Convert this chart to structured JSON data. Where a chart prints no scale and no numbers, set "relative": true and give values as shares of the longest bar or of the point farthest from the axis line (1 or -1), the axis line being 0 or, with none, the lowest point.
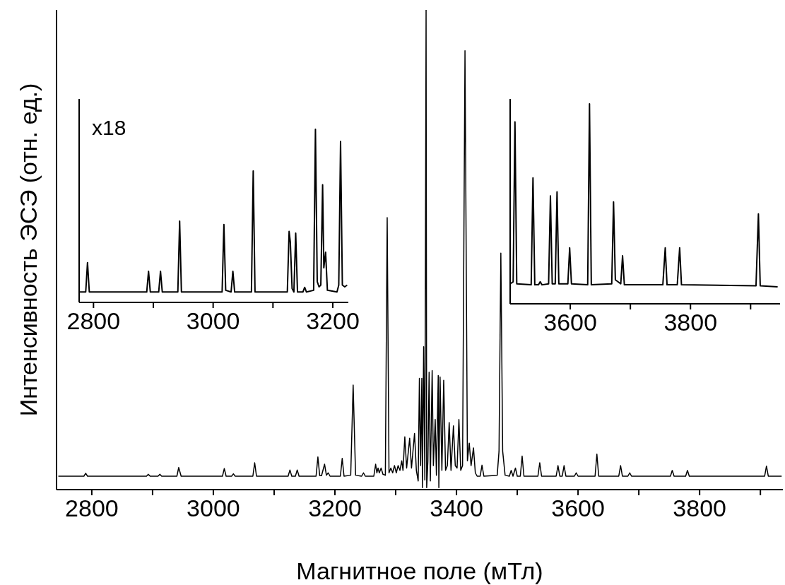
{
  "chart_data": [
    {
      "type": "line",
      "xlabel": "Магнитное поле (мТл)",
      "ylabel": "Интенсивность ЭСЭ (отн. ед.)",
      "relative": true,
      "color": "#000000",
      "xlim": [
        2742,
        3937
      ],
      "xticks": [
        2800,
        {
          "value": 2900,
          "label": null
        },
        3000,
        {
          "value": 3100,
          "label": null
        },
        3200,
        {
          "value": 3300,
          "label": null
        },
        3400,
        {
          "value": 3500,
          "label": null
        },
        3600,
        {
          "value": 3700,
          "label": null
        },
        3800,
        {
          "value": 3900,
          "label": null
        }
      ],
      "x": [
        2745,
        2787,
        2790,
        2793,
        2890,
        2893,
        2896,
        2909,
        2912,
        2915,
        2940,
        2943,
        2947,
        3015,
        3018,
        3021,
        3030,
        3033,
        3036,
        3065,
        3068,
        3071,
        3123,
        3126,
        3129,
        3135,
        3138,
        3141,
        3169,
        3172,
        3175,
        3178,
        3183,
        3186,
        3189,
        3192,
        3209,
        3212,
        3215,
        3226,
        3230,
        3234,
        3244,
        3247,
        3250,
        3264,
        3267,
        3269,
        3271,
        3273,
        3276,
        3279,
        3283,
        3286,
        3289,
        3292,
        3295,
        3298,
        3301,
        3304,
        3307,
        3310,
        3312,
        3315,
        3318,
        3323,
        3326,
        3331,
        3334,
        3337,
        3339,
        3341,
        3343,
        3344,
        3346,
        3348,
        3350,
        3351,
        3353,
        3355,
        3357,
        3360,
        3362,
        3365,
        3367,
        3370,
        3371,
        3373,
        3376,
        3379,
        3382,
        3385,
        3388,
        3391,
        3395,
        3398,
        3401,
        3404,
        3407,
        3410,
        3414,
        3418,
        3421,
        3424,
        3428,
        3431,
        3434,
        3439,
        3442,
        3445,
        3467,
        3470,
        3473,
        3476,
        3480,
        3487,
        3490,
        3493,
        3497,
        3500,
        3505,
        3508,
        3511,
        3534,
        3537,
        3540,
        3564,
        3567,
        3570,
        3574,
        3577,
        3580,
        3594,
        3597,
        3600,
        3628,
        3631,
        3634,
        3667,
        3670,
        3673,
        3682,
        3685,
        3688,
        3752,
        3755,
        3758,
        3777,
        3780,
        3783,
        3907,
        3910,
        3913,
        3935
      ],
      "values": [
        0.028,
        0.028,
        0.034,
        0.028,
        0.028,
        0.032,
        0.028,
        0.028,
        0.032,
        0.028,
        0.028,
        0.046,
        0.028,
        0.028,
        0.044,
        0.028,
        0.028,
        0.033,
        0.028,
        0.028,
        0.056,
        0.028,
        0.028,
        0.041,
        0.028,
        0.028,
        0.041,
        0.028,
        0.028,
        0.068,
        0.029,
        0.029,
        0.053,
        0.03,
        0.035,
        0.028,
        0.028,
        0.065,
        0.028,
        0.03,
        0.218,
        0.03,
        0.028,
        0.035,
        0.028,
        0.028,
        0.053,
        0.035,
        0.045,
        0.035,
        0.045,
        0.032,
        0.03,
        0.567,
        0.035,
        0.045,
        0.035,
        0.05,
        0.035,
        0.05,
        0.04,
        0.06,
        0.04,
        0.11,
        0.045,
        0.107,
        0.045,
        0.117,
        0.04,
        0.018,
        0.232,
        0.05,
        0.232,
        0.004,
        0.298,
        0.02,
        1.0,
        0.004,
        0.06,
        0.245,
        0.018,
        0.248,
        0.05,
        0.146,
        0.03,
        0.238,
        0.004,
        0.235,
        0.04,
        0.228,
        0.04,
        0.05,
        0.14,
        0.04,
        0.133,
        0.05,
        0.045,
        0.146,
        0.04,
        0.05,
        0.915,
        0.06,
        0.097,
        0.05,
        0.087,
        0.035,
        0.028,
        0.028,
        0.051,
        0.028,
        0.03,
        0.08,
        0.493,
        0.08,
        0.03,
        0.028,
        0.04,
        0.028,
        0.045,
        0.028,
        0.028,
        0.07,
        0.028,
        0.028,
        0.056,
        0.028,
        0.028,
        0.05,
        0.028,
        0.028,
        0.05,
        0.028,
        0.028,
        0.035,
        0.028,
        0.028,
        0.074,
        0.028,
        0.028,
        0.05,
        0.028,
        0.028,
        0.035,
        0.028,
        0.028,
        0.04,
        0.028,
        0.028,
        0.04,
        0.028,
        0.028,
        0.049,
        0.028,
        0.028
      ]
    },
    {
      "type": "line",
      "relative": true,
      "color": "#000000",
      "annotations": [
        "x18"
      ],
      "xlim": [
        2776,
        3226
      ],
      "xticks": [
        2800,
        {
          "value": 2900,
          "label": null
        },
        3000,
        {
          "value": 3100,
          "label": null
        },
        3200
      ],
      "x": [
        2776,
        2787,
        2790,
        2793,
        2889,
        2892,
        2895,
        2909,
        2912,
        2915,
        2941,
        2944,
        2947,
        3015,
        3018,
        3021,
        3030,
        3033,
        3036,
        3064,
        3067,
        3070,
        3124,
        3127,
        3129,
        3132,
        3135,
        3138,
        3141,
        3150,
        3153,
        3156,
        3168,
        3171,
        3174,
        3177,
        3180,
        3183,
        3185,
        3188,
        3191,
        3207,
        3210,
        3213,
        3216,
        3220,
        3224
      ],
      "values": [
        0.06,
        0.06,
        0.23,
        0.06,
        0.06,
        0.18,
        0.06,
        0.06,
        0.18,
        0.06,
        0.06,
        0.47,
        0.06,
        0.06,
        0.45,
        0.07,
        0.06,
        0.18,
        0.06,
        0.06,
        0.76,
        0.06,
        0.06,
        0.41,
        0.35,
        0.08,
        0.06,
        0.4,
        0.06,
        0.06,
        0.087,
        0.06,
        0.07,
        1.0,
        0.12,
        0.09,
        0.1,
        0.68,
        0.2,
        0.29,
        0.07,
        0.06,
        0.1,
        0.93,
        0.1,
        0.09,
        0.1
      ]
    },
    {
      "type": "line",
      "relative": true,
      "color": "#000000",
      "xlim": [
        3500,
        3949
      ],
      "xticks": [
        3600,
        {
          "value": 3700,
          "label": null
        },
        3800,
        {
          "value": 3900,
          "label": null
        }
      ],
      "x": [
        3500,
        3505,
        3508,
        3511,
        3535,
        3538,
        3541,
        3547,
        3550,
        3553,
        3564,
        3567,
        3570,
        3575,
        3578,
        3581,
        3596,
        3599,
        3602,
        3629,
        3632,
        3635,
        3669,
        3672,
        3675,
        3684,
        3687,
        3690,
        3754,
        3758,
        3761,
        3778,
        3782,
        3785,
        3909,
        3913,
        3916,
        3945
      ],
      "values": [
        0.1,
        0.11,
        0.91,
        0.1,
        0.095,
        0.63,
        0.095,
        0.095,
        0.11,
        0.095,
        0.1,
        0.54,
        0.1,
        0.1,
        0.56,
        0.1,
        0.1,
        0.28,
        0.1,
        0.095,
        1.0,
        0.095,
        0.1,
        0.51,
        0.12,
        0.1,
        0.24,
        0.095,
        0.095,
        0.28,
        0.095,
        0.095,
        0.28,
        0.095,
        0.09,
        0.45,
        0.09,
        0.085
      ]
    }
  ]
}
